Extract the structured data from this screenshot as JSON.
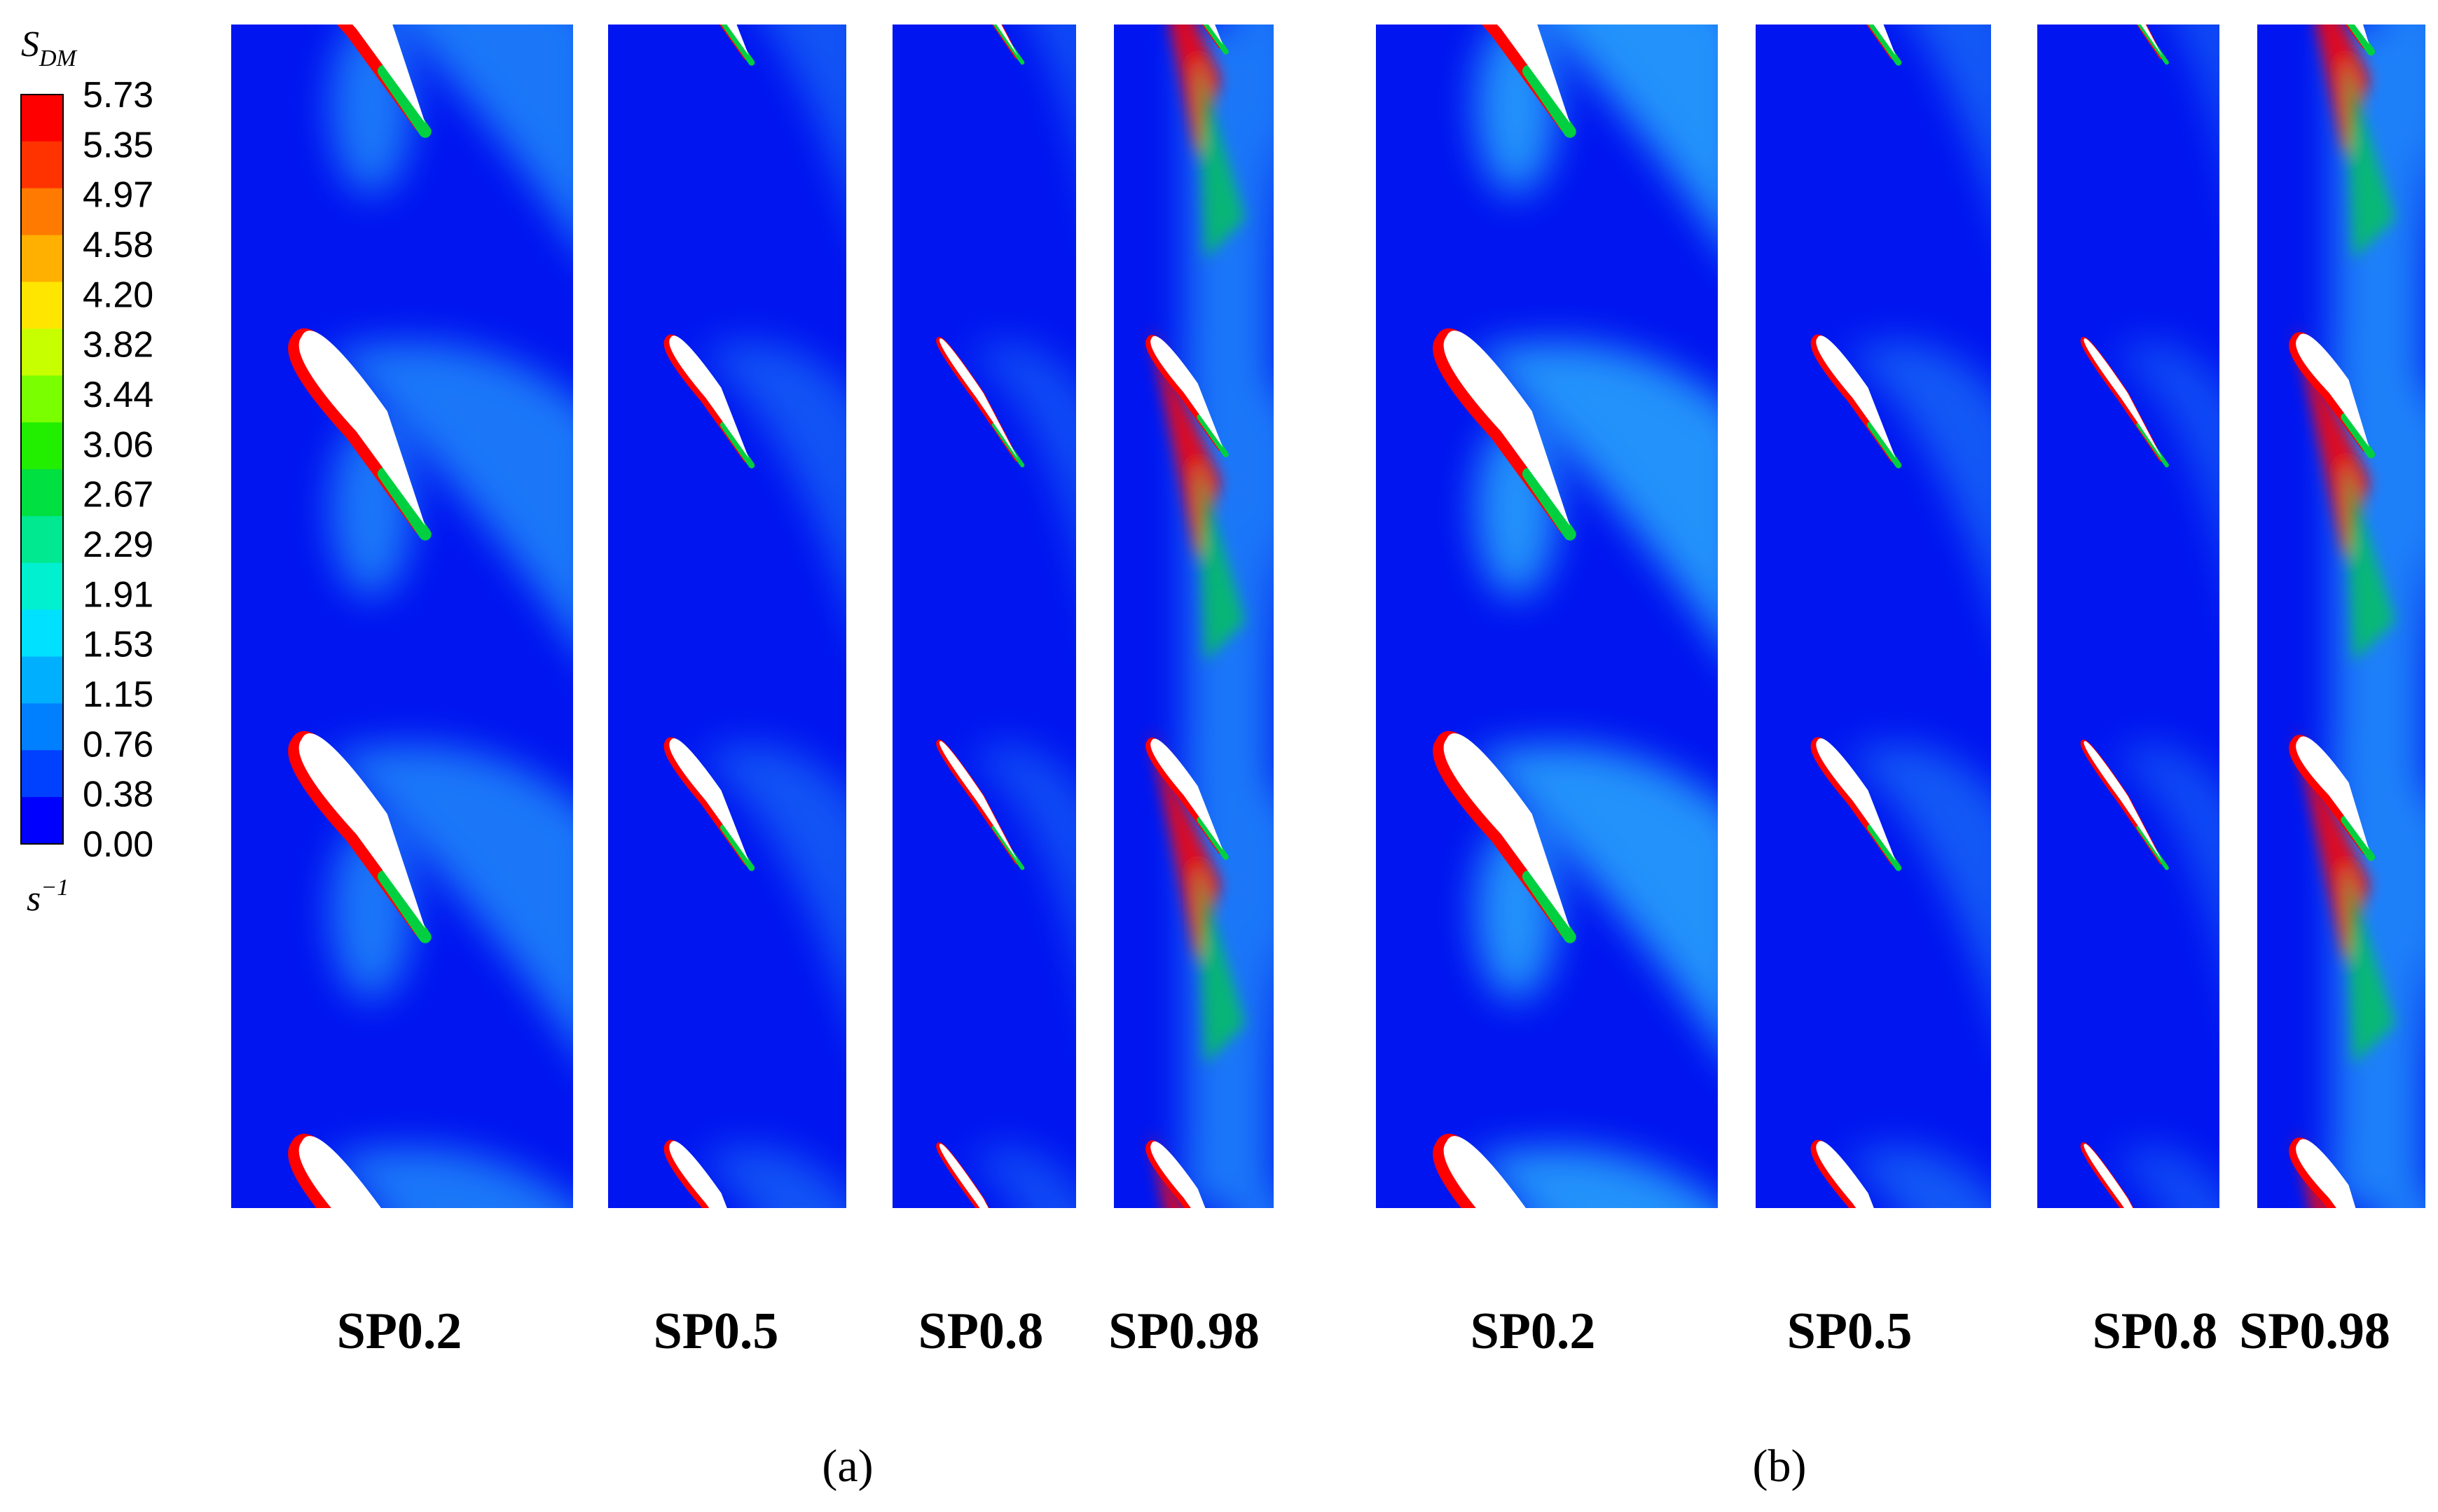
{
  "colorbar": {
    "symbol": "S",
    "subscript": "DM",
    "unit_base": "s",
    "unit_exponent": "−1",
    "ticks": [
      "5.73",
      "5.35",
      "4.97",
      "4.58",
      "4.20",
      "3.82",
      "3.44",
      "3.06",
      "2.67",
      "2.29",
      "1.91",
      "1.53",
      "1.15",
      "0.76",
      "0.38",
      "0.00"
    ],
    "colors": [
      "#ff0000",
      "#ff3300",
      "#ff7a00",
      "#ffb000",
      "#ffe600",
      "#c8ff00",
      "#7aff00",
      "#22ee00",
      "#00e040",
      "#00e890",
      "#00f0d0",
      "#00e0ff",
      "#00b0ff",
      "#0080ff",
      "#0040ff",
      "#0000ff"
    ]
  },
  "groups": [
    {
      "label": "(a)",
      "panels": [
        "SP0.2",
        "SP0.5",
        "SP0.8",
        "SP0.98"
      ]
    },
    {
      "label": "(b)",
      "panels": [
        "SP0.2",
        "SP0.5",
        "SP0.8",
        "SP0.98"
      ]
    }
  ],
  "colors": {
    "background_field": "#0015f0",
    "wake": "#33c8ff",
    "wake_strong": "#30e0a0",
    "blade_fill": "#ffffff",
    "edge_high": "#ff0000",
    "edge_mid": "#00d040"
  }
}
